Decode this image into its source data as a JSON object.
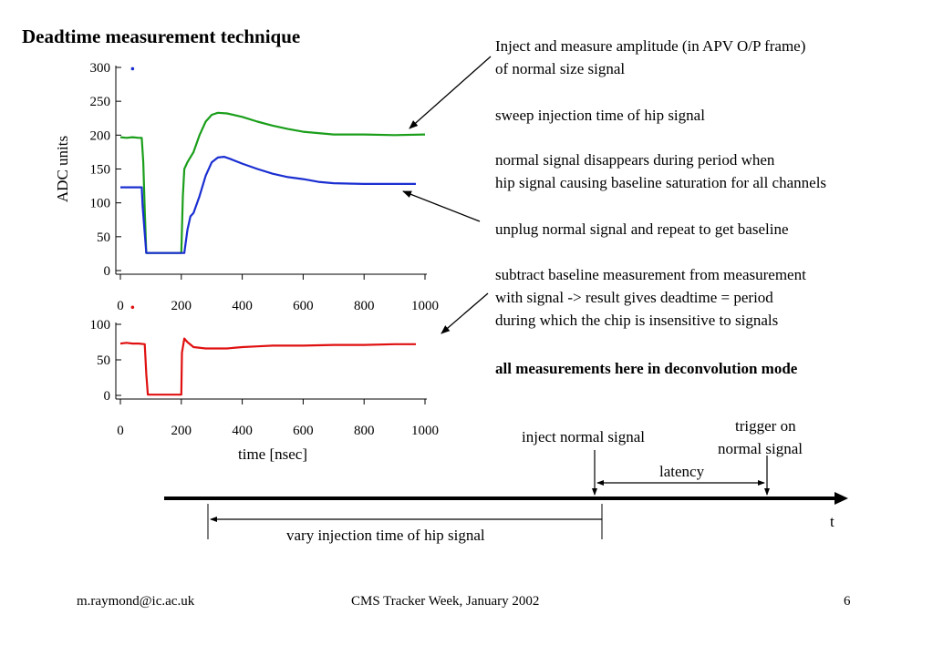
{
  "slide": {
    "title": "Deadtime measurement technique",
    "footer_left": "m.raymond@ic.ac.uk",
    "footer_center": "CMS Tracker Week, January 2002",
    "footer_right": "6"
  },
  "notes": [
    {
      "lines": [
        "Inject and measure amplitude (in APV O/P frame)",
        "of normal size signal"
      ],
      "bold": false
    },
    {
      "lines": [
        "sweep injection time of hip signal"
      ],
      "bold": false
    },
    {
      "lines": [
        "normal signal disappears during period when",
        "hip signal causing baseline saturation for all channels"
      ],
      "bold": false
    },
    {
      "lines": [
        "unplug normal signal and repeat to get baseline"
      ],
      "bold": false
    },
    {
      "lines": [
        "subtract baseline measurement from measurement",
        "with signal -> result gives deadtime = period",
        "during which the chip is insensitive to signals"
      ],
      "bold": false
    },
    {
      "lines": [
        "all measurements here in deconvolution mode"
      ],
      "bold": true
    }
  ],
  "timeline": {
    "inject_label": "inject normal signal",
    "trigger_label_1": "trigger on",
    "trigger_label_2": "normal signal",
    "latency_label": "latency",
    "vary_label": "vary injection time of hip signal",
    "t_label": "t"
  },
  "chart_data": [
    {
      "type": "line",
      "title": "",
      "ylabel": "ADC units",
      "xlabel": "",
      "xlim": [
        0,
        1000
      ],
      "ylim": [
        0,
        300
      ],
      "xticks": [
        0,
        200,
        400,
        600,
        800,
        1000
      ],
      "yticks": [
        0,
        50,
        100,
        150,
        200,
        250,
        300
      ],
      "grid": false,
      "series": [
        {
          "color": "#1a9e1a",
          "points": [
            [
              0,
              197
            ],
            [
              20,
              196
            ],
            [
              40,
              197
            ],
            [
              60,
              196
            ],
            [
              70,
              196
            ],
            [
              75,
              160
            ],
            [
              80,
              90
            ],
            [
              85,
              26
            ],
            [
              120,
              26
            ],
            [
              160,
              26
            ],
            [
              200,
              26
            ],
            [
              205,
              110
            ],
            [
              210,
              150
            ],
            [
              220,
              160
            ],
            [
              240,
              175
            ],
            [
              260,
              200
            ],
            [
              280,
              220
            ],
            [
              300,
              230
            ],
            [
              320,
              233
            ],
            [
              350,
              232
            ],
            [
              400,
              227
            ],
            [
              450,
              220
            ],
            [
              500,
              214
            ],
            [
              550,
              209
            ],
            [
              600,
              205
            ],
            [
              650,
              203
            ],
            [
              700,
              201
            ],
            [
              800,
              201
            ],
            [
              900,
              200
            ],
            [
              1000,
              201
            ]
          ]
        },
        {
          "color": "#1a2ed1",
          "points": [
            [
              0,
              123
            ],
            [
              20,
              123
            ],
            [
              40,
              123
            ],
            [
              70,
              123
            ],
            [
              73,
              95
            ],
            [
              80,
              55
            ],
            [
              85,
              26
            ],
            [
              120,
              26
            ],
            [
              160,
              26
            ],
            [
              210,
              26
            ],
            [
              220,
              60
            ],
            [
              230,
              80
            ],
            [
              240,
              85
            ],
            [
              260,
              110
            ],
            [
              280,
              140
            ],
            [
              300,
              160
            ],
            [
              320,
              167
            ],
            [
              340,
              168
            ],
            [
              360,
              165
            ],
            [
              400,
              158
            ],
            [
              450,
              150
            ],
            [
              500,
              143
            ],
            [
              550,
              138
            ],
            [
              600,
              135
            ],
            [
              650,
              131
            ],
            [
              700,
              129
            ],
            [
              800,
              128
            ],
            [
              900,
              128
            ],
            [
              970,
              128
            ]
          ]
        }
      ],
      "markers": [
        {
          "x": 40,
          "y": 298,
          "color": "#1a2ed1"
        }
      ]
    },
    {
      "type": "line",
      "title": "",
      "ylabel": "",
      "xlabel": "time [nsec]",
      "xlim": [
        0,
        1000
      ],
      "ylim": [
        0,
        100
      ],
      "xticks": [
        0,
        200,
        400,
        600,
        800,
        1000
      ],
      "yticks": [
        0,
        50,
        100
      ],
      "grid": false,
      "series": [
        {
          "color": "#e01010",
          "points": [
            [
              0,
              73
            ],
            [
              20,
              74
            ],
            [
              40,
              73
            ],
            [
              60,
              73
            ],
            [
              80,
              72
            ],
            [
              85,
              30
            ],
            [
              90,
              1
            ],
            [
              150,
              1
            ],
            [
              200,
              1
            ],
            [
              202,
              60
            ],
            [
              210,
              80
            ],
            [
              220,
              75
            ],
            [
              240,
              68
            ],
            [
              280,
              66
            ],
            [
              350,
              66
            ],
            [
              400,
              68
            ],
            [
              450,
              69
            ],
            [
              500,
              70
            ],
            [
              600,
              70
            ],
            [
              700,
              71
            ],
            [
              800,
              71
            ],
            [
              900,
              72
            ],
            [
              970,
              72
            ]
          ]
        }
      ],
      "markers": [
        {
          "x": 40,
          "y": 124,
          "color": "#e01010"
        }
      ]
    }
  ]
}
